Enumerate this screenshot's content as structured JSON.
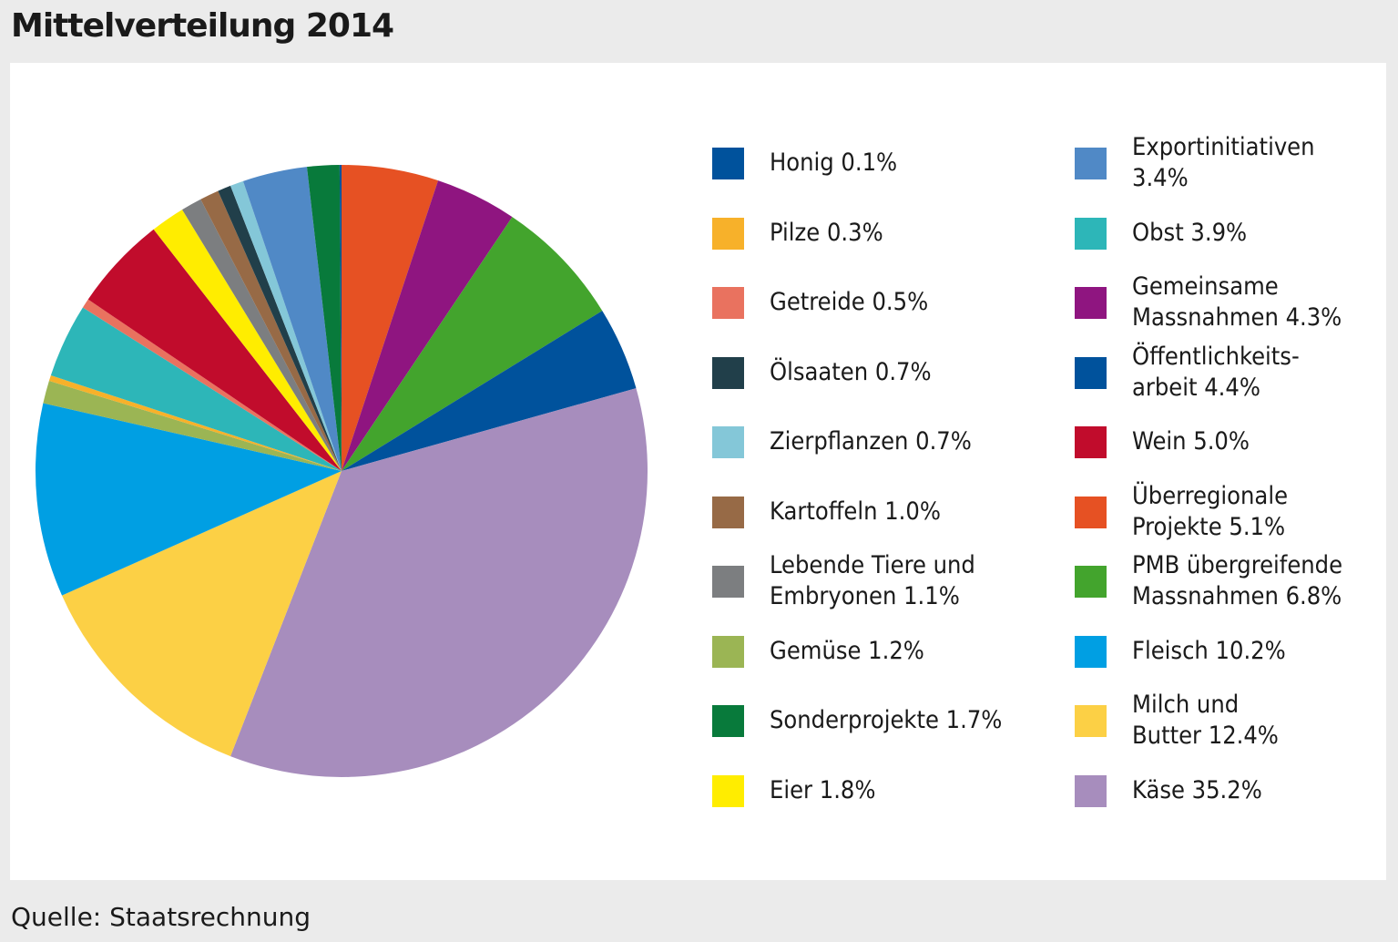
{
  "title": "Mittelverteilung 2014",
  "source": "Quelle: Staatsrechnung",
  "chart_data": {
    "type": "pie",
    "title": "Mittelverteilung 2014",
    "unit": "%",
    "slices": [
      {
        "label": "Überregionale Projekte",
        "value": 5.1,
        "color": "#e65123"
      },
      {
        "label": "Gemeinsame Massnahmen",
        "value": 4.3,
        "color": "#8f1580"
      },
      {
        "label": "PMB übergreifende Massnahmen",
        "value": 6.8,
        "color": "#43a42d"
      },
      {
        "label": "Öffentlichkeitsarbeit",
        "value": 4.4,
        "color": "#00529c"
      },
      {
        "label": "Käse",
        "value": 35.2,
        "color": "#a78dbd"
      },
      {
        "label": "Milch und Butter",
        "value": 12.4,
        "color": "#fcd045"
      },
      {
        "label": "Fleisch",
        "value": 10.2,
        "color": "#009fe3"
      },
      {
        "label": "Gemüse",
        "value": 1.2,
        "color": "#9bb554"
      },
      {
        "label": "Pilze",
        "value": 0.3,
        "color": "#f7b12a"
      },
      {
        "label": "Obst",
        "value": 3.9,
        "color": "#2db6b8"
      },
      {
        "label": "Getreide",
        "value": 0.5,
        "color": "#e9725f"
      },
      {
        "label": "Wein",
        "value": 5.0,
        "color": "#c10c2c"
      },
      {
        "label": "Eier",
        "value": 1.8,
        "color": "#ffed00"
      },
      {
        "label": "Lebende Tiere und Embryonen",
        "value": 1.1,
        "color": "#7c7e80"
      },
      {
        "label": "Kartoffeln",
        "value": 1.0,
        "color": "#976a46"
      },
      {
        "label": "Ölsaaten",
        "value": 0.7,
        "color": "#213f4a"
      },
      {
        "label": "Zierpflanzen",
        "value": 0.7,
        "color": "#84c7d8"
      },
      {
        "label": "Exportinitiativen",
        "value": 3.4,
        "color": "#5089c6"
      },
      {
        "label": "Sonderprojekte",
        "value": 1.7,
        "color": "#087a3b"
      },
      {
        "label": "Honig",
        "value": 0.1,
        "color": "#00529c"
      }
    ],
    "legend": {
      "left_column": [
        {
          "text": "Honig 0.1%",
          "color": "#00529c"
        },
        {
          "text": "Pilze 0.3%",
          "color": "#f7b12a"
        },
        {
          "text": "Getreide 0.5%",
          "color": "#e9725f"
        },
        {
          "text": "Ölsaaten 0.7%",
          "color": "#213f4a"
        },
        {
          "text": "Zierpflanzen 0.7%",
          "color": "#84c7d8"
        },
        {
          "text": "Kartoffeln 1.0%",
          "color": "#976a46"
        },
        {
          "text": "Lebende Tiere und\nEmbryonen 1.1%",
          "color": "#7c7e80"
        },
        {
          "text": "Gemüse 1.2%",
          "color": "#9bb554"
        },
        {
          "text": "Sonderprojekte 1.7%",
          "color": "#087a3b"
        },
        {
          "text": "Eier 1.8%",
          "color": "#ffed00"
        }
      ],
      "right_column": [
        {
          "text": "Exportinitiativen\n3.4%",
          "color": "#5089c6"
        },
        {
          "text": "Obst 3.9%",
          "color": "#2db6b8"
        },
        {
          "text": "Gemeinsame\nMassnahmen 4.3%",
          "color": "#8f1580"
        },
        {
          "text": "Öffentlichkeits-\narbeit 4.4%",
          "color": "#00529c"
        },
        {
          "text": "Wein 5.0%",
          "color": "#c10c2c"
        },
        {
          "text": "Überregionale\nProjekte 5.1%",
          "color": "#e65123"
        },
        {
          "text": "PMB übergreifende\nMassnahmen 6.8%",
          "color": "#43a42d"
        },
        {
          "text": "Fleisch 10.2%",
          "color": "#009fe3"
        },
        {
          "text": "Milch und\nButter 12.4%",
          "color": "#fcd045"
        },
        {
          "text": "Käse 35.2%",
          "color": "#a78dbd"
        }
      ]
    }
  }
}
